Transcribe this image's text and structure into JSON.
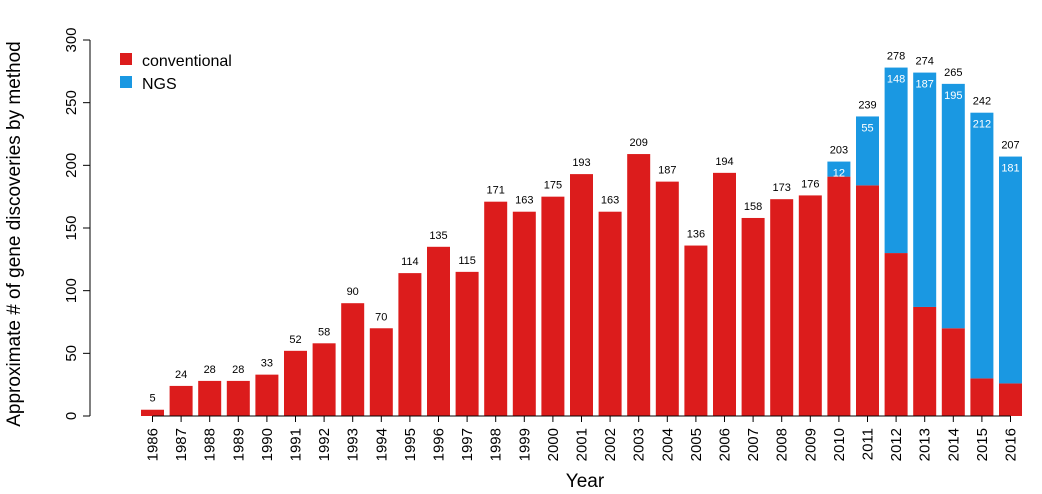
{
  "chart_data": {
    "type": "bar",
    "stacked": true,
    "xlabel": "Year",
    "ylabel": "Approximate # of gene discoveries by method",
    "ylim": [
      0,
      300
    ],
    "yticks": [
      0,
      50,
      100,
      150,
      200,
      250,
      300
    ],
    "grid": false,
    "legend_position": "top-left",
    "categories": [
      "1986",
      "1987",
      "1988",
      "1989",
      "1990",
      "1991",
      "1992",
      "1993",
      "1994",
      "1995",
      "1996",
      "1997",
      "1998",
      "1999",
      "2000",
      "2001",
      "2002",
      "2003",
      "2004",
      "2005",
      "2006",
      "2007",
      "2008",
      "2009",
      "2010",
      "2011",
      "2012",
      "2013",
      "2014",
      "2015",
      "2016"
    ],
    "series": [
      {
        "name": "conventional",
        "color": "#dc1c1c",
        "values": [
          5,
          24,
          28,
          28,
          33,
          52,
          58,
          90,
          70,
          114,
          135,
          115,
          171,
          163,
          175,
          193,
          163,
          209,
          187,
          136,
          194,
          158,
          173,
          176,
          191,
          184,
          130,
          87,
          70,
          30,
          26
        ]
      },
      {
        "name": "NGS",
        "color": "#1a98e2",
        "values": [
          0,
          0,
          0,
          0,
          0,
          0,
          0,
          0,
          0,
          0,
          0,
          0,
          0,
          0,
          0,
          0,
          0,
          0,
          0,
          0,
          0,
          0,
          0,
          0,
          12,
          55,
          148,
          187,
          195,
          212,
          181
        ]
      }
    ],
    "totals": [
      5,
      24,
      28,
      28,
      33,
      52,
      58,
      90,
      70,
      114,
      135,
      115,
      171,
      163,
      175,
      193,
      163,
      209,
      187,
      136,
      194,
      158,
      173,
      176,
      203,
      239,
      278,
      274,
      265,
      242,
      207
    ]
  }
}
